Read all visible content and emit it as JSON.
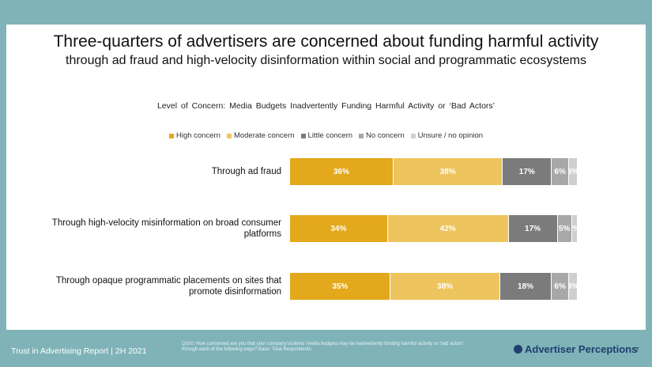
{
  "header": {
    "title_line1": "Three-quarters of advertisers are concerned about funding harmful activity",
    "title_line2": "through ad fraud and high-velocity disinformation within social and programmatic ecosystems"
  },
  "chart_data": {
    "type": "bar",
    "orientation": "horizontal-stacked-100",
    "title": "Level of Concern: Media Budgets Inadvertently Funding Harmful Activity or ‘Bad Actors’",
    "legend_position": "top",
    "categories": [
      "Through ad fraud",
      "Through high-velocity misinformation on broad consumer platforms",
      "Through opaque programmatic placements on sites that promote disinformation"
    ],
    "series": [
      {
        "name": "High concern",
        "color": "#e3a81b",
        "values": [
          36,
          34,
          35
        ]
      },
      {
        "name": "Moderate concern",
        "color": "#edc45e",
        "values": [
          38,
          42,
          38
        ]
      },
      {
        "name": "Little concern",
        "color": "#7b7b7b",
        "values": [
          17,
          17,
          18
        ]
      },
      {
        "name": "No concern",
        "color": "#a8a8a8",
        "values": [
          6,
          5,
          6
        ]
      },
      {
        "name": "Unsure / no opinion",
        "color": "#cfcfcf",
        "values": [
          3,
          2,
          3
        ]
      }
    ],
    "value_suffix": "%"
  },
  "footer": {
    "report_label": "Trust in Advertising Report  |  2H 2021",
    "footnote": "Q100. How concerned are you that your company’s/clients’ media budgets may be inadvertently funding harmful activity or ‘bad actors’ through each of the following ways? Base: Total Respondents",
    "brand": "Advertiser Perceptions",
    "page_number": "7"
  }
}
